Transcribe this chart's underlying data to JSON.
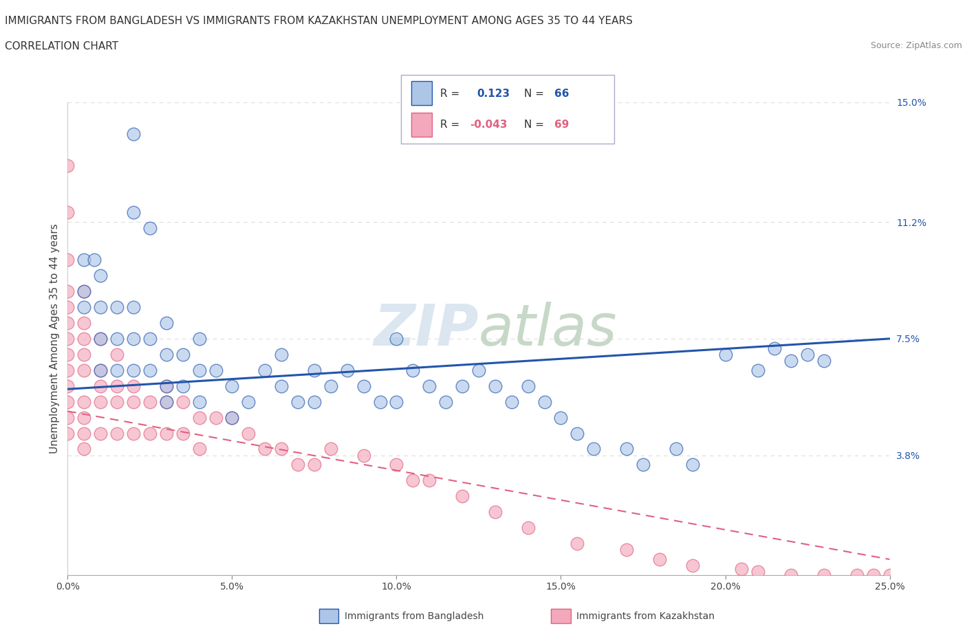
{
  "title_line1": "IMMIGRANTS FROM BANGLADESH VS IMMIGRANTS FROM KAZAKHSTAN UNEMPLOYMENT AMONG AGES 35 TO 44 YEARS",
  "title_line2": "CORRELATION CHART",
  "source_text": "Source: ZipAtlas.com",
  "ylabel": "Unemployment Among Ages 35 to 44 years",
  "xlim": [
    0.0,
    0.25
  ],
  "ylim": [
    0.0,
    0.15
  ],
  "xticks": [
    0.0,
    0.05,
    0.1,
    0.15,
    0.2,
    0.25
  ],
  "xtick_labels": [
    "0.0%",
    "5.0%",
    "10.0%",
    "15.0%",
    "20.0%",
    "25.0%"
  ],
  "ytick_right_vals": [
    0.0,
    0.038,
    0.075,
    0.112,
    0.15
  ],
  "ytick_right_labels": [
    "",
    "3.8%",
    "7.5%",
    "11.2%",
    "15.0%"
  ],
  "color_bangladesh": "#adc6e8",
  "color_kazakhstan": "#f4a8bc",
  "color_bangladesh_line": "#2255aa",
  "color_kazakhstan_line": "#e06080",
  "watermark_color": "#dce6f0",
  "bangladesh_x": [
    0.02,
    0.02,
    0.025,
    0.005,
    0.005,
    0.005,
    0.008,
    0.01,
    0.01,
    0.01,
    0.01,
    0.015,
    0.015,
    0.015,
    0.02,
    0.02,
    0.02,
    0.025,
    0.025,
    0.03,
    0.03,
    0.03,
    0.03,
    0.035,
    0.035,
    0.04,
    0.04,
    0.04,
    0.045,
    0.05,
    0.05,
    0.055,
    0.06,
    0.065,
    0.065,
    0.07,
    0.075,
    0.075,
    0.08,
    0.085,
    0.09,
    0.095,
    0.1,
    0.1,
    0.105,
    0.11,
    0.115,
    0.12,
    0.125,
    0.13,
    0.135,
    0.14,
    0.145,
    0.15,
    0.155,
    0.16,
    0.17,
    0.175,
    0.185,
    0.19,
    0.2,
    0.21,
    0.215,
    0.22,
    0.225,
    0.23
  ],
  "bangladesh_y": [
    0.14,
    0.115,
    0.11,
    0.1,
    0.09,
    0.085,
    0.1,
    0.095,
    0.085,
    0.075,
    0.065,
    0.085,
    0.075,
    0.065,
    0.085,
    0.075,
    0.065,
    0.075,
    0.065,
    0.08,
    0.07,
    0.06,
    0.055,
    0.07,
    0.06,
    0.075,
    0.065,
    0.055,
    0.065,
    0.06,
    0.05,
    0.055,
    0.065,
    0.07,
    0.06,
    0.055,
    0.065,
    0.055,
    0.06,
    0.065,
    0.06,
    0.055,
    0.075,
    0.055,
    0.065,
    0.06,
    0.055,
    0.06,
    0.065,
    0.06,
    0.055,
    0.06,
    0.055,
    0.05,
    0.045,
    0.04,
    0.04,
    0.035,
    0.04,
    0.035,
    0.07,
    0.065,
    0.072,
    0.068,
    0.07,
    0.068
  ],
  "kazakhstan_x": [
    0.0,
    0.0,
    0.0,
    0.0,
    0.0,
    0.0,
    0.0,
    0.0,
    0.0,
    0.0,
    0.0,
    0.0,
    0.0,
    0.005,
    0.005,
    0.005,
    0.005,
    0.005,
    0.005,
    0.005,
    0.005,
    0.005,
    0.01,
    0.01,
    0.01,
    0.01,
    0.01,
    0.015,
    0.015,
    0.015,
    0.015,
    0.02,
    0.02,
    0.02,
    0.025,
    0.025,
    0.03,
    0.03,
    0.03,
    0.035,
    0.035,
    0.04,
    0.04,
    0.045,
    0.05,
    0.055,
    0.06,
    0.065,
    0.07,
    0.075,
    0.08,
    0.09,
    0.1,
    0.105,
    0.11,
    0.12,
    0.13,
    0.14,
    0.155,
    0.17,
    0.18,
    0.19,
    0.205,
    0.21,
    0.22,
    0.23,
    0.24,
    0.245,
    0.25
  ],
  "kazakhstan_y": [
    0.13,
    0.115,
    0.1,
    0.09,
    0.085,
    0.08,
    0.075,
    0.07,
    0.065,
    0.06,
    0.055,
    0.05,
    0.045,
    0.09,
    0.08,
    0.075,
    0.07,
    0.065,
    0.055,
    0.05,
    0.045,
    0.04,
    0.075,
    0.065,
    0.06,
    0.055,
    0.045,
    0.07,
    0.06,
    0.055,
    0.045,
    0.06,
    0.055,
    0.045,
    0.055,
    0.045,
    0.06,
    0.055,
    0.045,
    0.055,
    0.045,
    0.05,
    0.04,
    0.05,
    0.05,
    0.045,
    0.04,
    0.04,
    0.035,
    0.035,
    0.04,
    0.038,
    0.035,
    0.03,
    0.03,
    0.025,
    0.02,
    0.015,
    0.01,
    0.008,
    0.005,
    0.003,
    0.002,
    0.001,
    0.0,
    0.0,
    0.0,
    0.0,
    0.0
  ],
  "grid_color": "#dddddd",
  "background_color": "#ffffff",
  "title_fontsize": 11,
  "axis_label_fontsize": 11,
  "tick_fontsize": 10
}
